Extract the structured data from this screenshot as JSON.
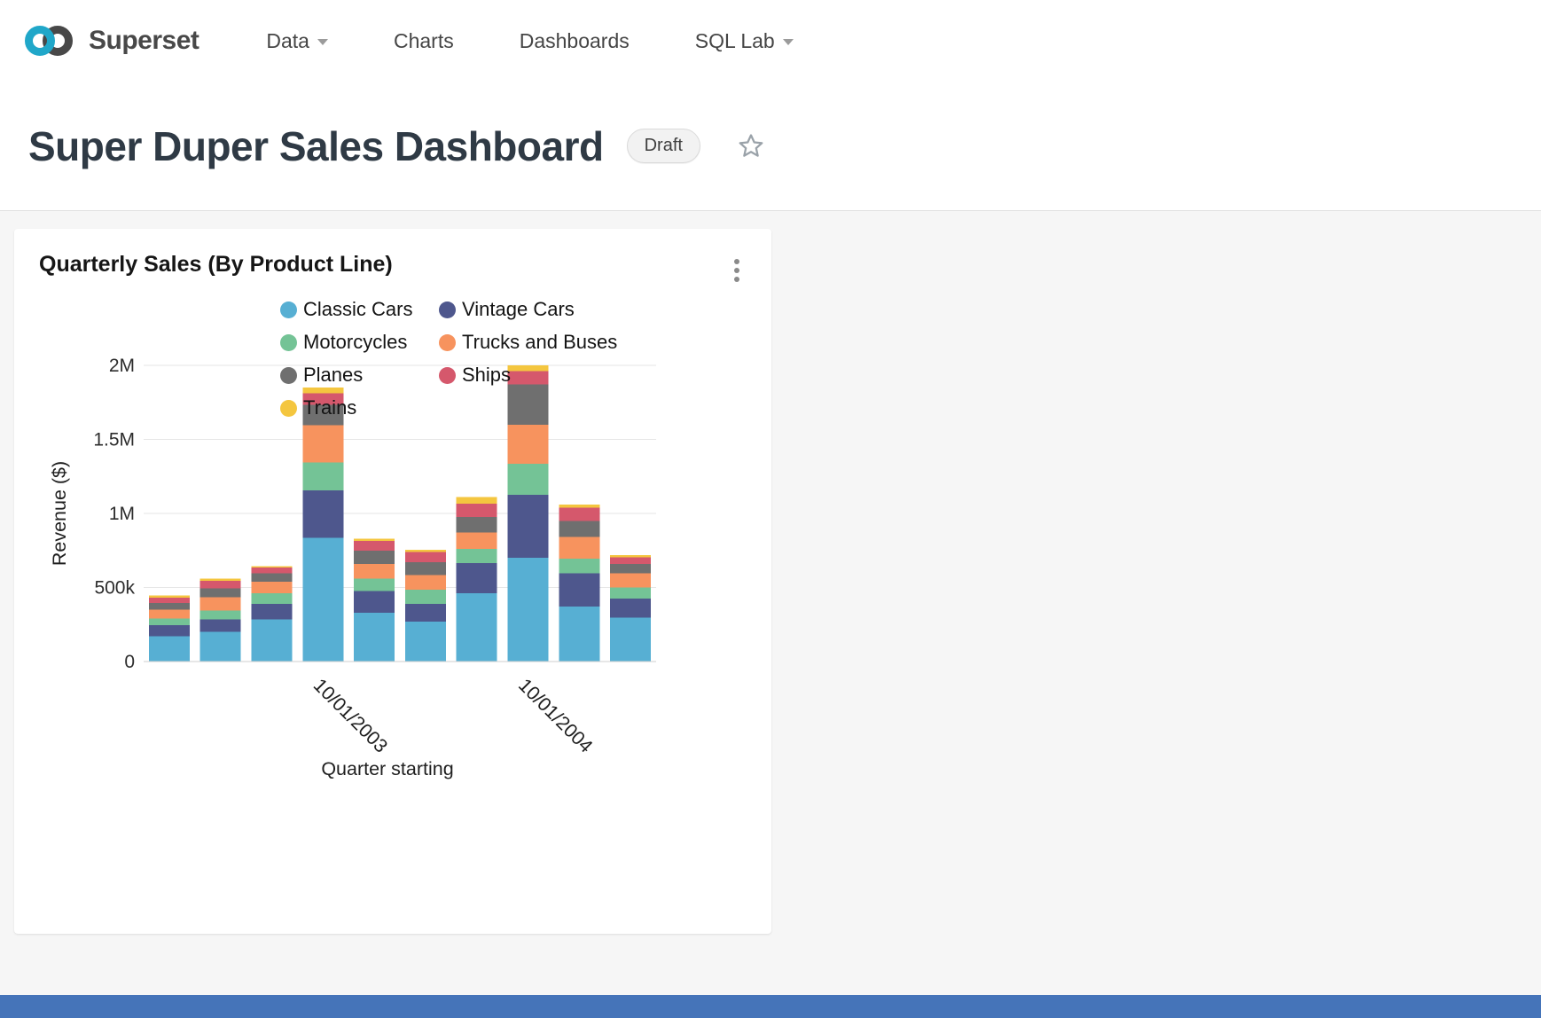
{
  "nav": {
    "brand": "Superset",
    "items": [
      {
        "label": "Data",
        "caret": true
      },
      {
        "label": "Charts",
        "caret": false
      },
      {
        "label": "Dashboards",
        "caret": false
      },
      {
        "label": "SQL Lab",
        "caret": true
      }
    ]
  },
  "header": {
    "title": "Super Duper Sales Dashboard",
    "badge": "Draft"
  },
  "card": {
    "title": "Quarterly Sales (By Product Line)"
  },
  "colors": {
    "brand_blue": "#20A7C9",
    "brand_dark": "#484848",
    "bottom_strip": "#4574B9"
  },
  "chart_data": {
    "type": "bar",
    "stacked": true,
    "title": "Quarterly Sales (By Product Line)",
    "xlabel": "Quarter starting",
    "ylabel": "Revenue ($)",
    "ylim": [
      0,
      2000000
    ],
    "grid": true,
    "legend_position": "top",
    "bars": 10,
    "y_ticks": [
      {
        "value": 0,
        "label": "0"
      },
      {
        "value": 500000,
        "label": "500k"
      },
      {
        "value": 1000000,
        "label": "1M"
      },
      {
        "value": 1500000,
        "label": "1.5M"
      },
      {
        "value": 2000000,
        "label": "2M"
      }
    ],
    "visible_x_ticks": [
      {
        "bar_index": 3,
        "label": "10/01/2003"
      },
      {
        "bar_index": 7,
        "label": "10/01/2004"
      }
    ],
    "series": [
      {
        "name": "Classic Cars",
        "color": "#57AFD3",
        "values": [
          170000,
          200000,
          285000,
          835000,
          330000,
          270000,
          460000,
          700000,
          370000,
          295000
        ]
      },
      {
        "name": "Vintage Cars",
        "color": "#4E578D",
        "values": [
          75000,
          85000,
          105000,
          320000,
          145000,
          120000,
          205000,
          425000,
          225000,
          130000
        ]
      },
      {
        "name": "Motorcycles",
        "color": "#74C396",
        "values": [
          45000,
          60000,
          70000,
          190000,
          85000,
          95000,
          95000,
          210000,
          100000,
          75000
        ]
      },
      {
        "name": "Trucks and Buses",
        "color": "#F7935E",
        "values": [
          60000,
          90000,
          80000,
          250000,
          100000,
          100000,
          110000,
          265000,
          145000,
          95000
        ]
      },
      {
        "name": "Planes",
        "color": "#6F6F6F",
        "values": [
          45000,
          60000,
          55000,
          140000,
          90000,
          85000,
          105000,
          270000,
          110000,
          65000
        ]
      },
      {
        "name": "Ships",
        "color": "#D5586C",
        "values": [
          35000,
          50000,
          40000,
          75000,
          65000,
          70000,
          90000,
          90000,
          90000,
          45000
        ]
      },
      {
        "name": "Trains",
        "color": "#F4C63F",
        "values": [
          15000,
          15000,
          10000,
          40000,
          15000,
          15000,
          45000,
          40000,
          20000,
          15000
        ]
      }
    ]
  }
}
